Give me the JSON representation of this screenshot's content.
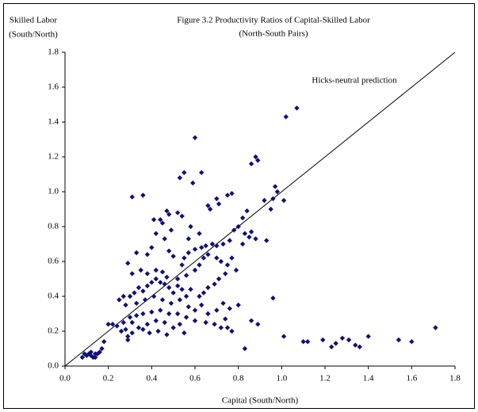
{
  "chart_data": {
    "type": "scatter",
    "title": "Figure 3.2 Productivity Ratios of Capital-Skilled Labor",
    "subtitle": "(North-South Pairs)",
    "y_label": [
      "Skilled Labor",
      "(South/North)"
    ],
    "x_label": "Capital (South/North)",
    "annotation": "Hicks-neutral prediction",
    "diagonal": true,
    "color": "#10107a",
    "xlim": [
      0,
      1.8
    ],
    "ylim": [
      0,
      1.8
    ],
    "xticks": [
      {
        "value": 0,
        "label": "0.0"
      },
      0.2,
      0.4,
      0.6,
      0.8,
      {
        "value": 1,
        "label": "1.0"
      },
      1.2,
      1.4,
      1.6,
      1.8
    ],
    "yticks": [
      {
        "value": 0,
        "label": "0.0"
      },
      0.2,
      0.4,
      0.6,
      0.8,
      {
        "value": 1,
        "label": "1.0"
      },
      1.2,
      1.4,
      1.6,
      1.8
    ],
    "x": [
      1.71,
      1.6,
      1.54,
      1.4,
      1.36,
      1.34,
      1.31,
      1.28,
      1.25,
      1.23,
      1.19,
      1.12,
      1.1,
      1.01,
      0.96,
      0.89,
      0.86,
      0.83,
      1.07,
      1.02,
      0.6,
      0.88,
      0.89,
      0.86,
      0.63,
      0.55,
      0.53,
      0.59,
      0.97,
      0.98,
      0.96,
      1.01,
      0.92,
      0.84,
      0.77,
      0.75,
      0.7,
      0.71,
      0.66,
      0.67,
      0.31,
      0.36,
      0.47,
      0.48,
      0.44,
      0.41,
      0.52,
      0.54,
      0.45,
      0.49,
      0.42,
      0.57,
      0.58,
      0.62,
      0.78,
      0.8,
      0.82,
      0.83,
      0.86,
      0.85,
      0.88,
      0.93,
      0.95,
      0.82,
      0.76,
      0.73,
      0.7,
      0.68,
      0.65,
      0.63,
      0.6,
      0.57,
      0.55,
      0.54,
      0.5,
      0.48,
      0.46,
      0.4,
      0.38,
      0.33,
      0.29,
      0.31,
      0.35,
      0.38,
      0.42,
      0.45,
      0.47,
      0.52,
      0.56,
      0.6,
      0.62,
      0.64,
      0.66,
      0.7,
      0.72,
      0.75,
      0.77,
      0.79,
      0.74,
      0.71,
      0.69,
      0.66,
      0.64,
      0.62,
      0.58,
      0.56,
      0.54,
      0.52,
      0.5,
      0.48,
      0.46,
      0.44,
      0.42,
      0.4,
      0.38,
      0.36,
      0.34,
      0.32,
      0.3,
      0.27,
      0.25,
      0.28,
      0.33,
      0.37,
      0.41,
      0.45,
      0.49,
      0.53,
      0.57,
      0.6,
      0.63,
      0.66,
      0.7,
      0.73,
      0.76,
      0.8,
      0.74,
      0.69,
      0.65,
      0.72,
      0.75,
      0.77,
      0.6,
      0.56,
      0.52,
      0.48,
      0.44,
      0.4,
      0.36,
      0.33,
      0.3,
      0.27,
      0.24,
      0.22,
      0.2,
      0.26,
      0.29,
      0.31,
      0.34,
      0.38,
      0.42,
      0.46,
      0.5,
      0.47,
      0.43,
      0.39,
      0.36,
      0.53,
      0.55,
      0.18,
      0.17,
      0.16,
      0.15,
      0.14,
      0.13,
      0.12,
      0.11,
      0.1,
      0.09,
      0.08,
      0.12,
      0.14,
      0.29,
      0.28,
      0.31
    ],
    "values": [
      0.22,
      0.14,
      0.15,
      0.17,
      0.11,
      0.12,
      0.15,
      0.16,
      0.13,
      0.11,
      0.15,
      0.14,
      0.14,
      0.17,
      0.39,
      0.24,
      0.26,
      0.1,
      1.48,
      1.43,
      1.31,
      1.2,
      1.18,
      1.16,
      1.11,
      1.11,
      1.08,
      1.05,
      1.03,
      1.0,
      0.96,
      0.95,
      0.95,
      0.89,
      0.99,
      0.98,
      0.96,
      0.93,
      0.92,
      0.9,
      0.97,
      0.98,
      0.89,
      0.87,
      0.84,
      0.84,
      0.88,
      0.86,
      0.82,
      0.78,
      0.76,
      0.73,
      0.8,
      0.76,
      0.78,
      0.8,
      0.85,
      0.76,
      0.77,
      0.74,
      0.73,
      0.72,
      0.9,
      0.7,
      0.72,
      0.7,
      0.69,
      0.7,
      0.69,
      0.68,
      0.67,
      0.65,
      0.62,
      0.58,
      0.63,
      0.66,
      0.73,
      0.68,
      0.64,
      0.65,
      0.59,
      0.53,
      0.55,
      0.53,
      0.55,
      0.54,
      0.51,
      0.5,
      0.52,
      0.55,
      0.58,
      0.62,
      0.64,
      0.62,
      0.6,
      0.58,
      0.62,
      0.55,
      0.53,
      0.5,
      0.47,
      0.45,
      0.42,
      0.4,
      0.44,
      0.4,
      0.44,
      0.46,
      0.42,
      0.45,
      0.47,
      0.48,
      0.5,
      0.48,
      0.46,
      0.43,
      0.45,
      0.42,
      0.4,
      0.4,
      0.38,
      0.35,
      0.36,
      0.38,
      0.4,
      0.38,
      0.36,
      0.38,
      0.34,
      0.32,
      0.35,
      0.3,
      0.32,
      0.36,
      0.33,
      0.35,
      0.27,
      0.24,
      0.25,
      0.22,
      0.22,
      0.2,
      0.26,
      0.28,
      0.3,
      0.3,
      0.32,
      0.31,
      0.3,
      0.29,
      0.28,
      0.25,
      0.23,
      0.24,
      0.24,
      0.2,
      0.17,
      0.19,
      0.22,
      0.24,
      0.26,
      0.25,
      0.22,
      0.18,
      0.2,
      0.19,
      0.21,
      0.24,
      0.19,
      0.14,
      0.1,
      0.08,
      0.07,
      0.07,
      0.05,
      0.06,
      0.07,
      0.06,
      0.07,
      0.05,
      0.08,
      0.05,
      0.15,
      0.21,
      0.25
    ]
  }
}
